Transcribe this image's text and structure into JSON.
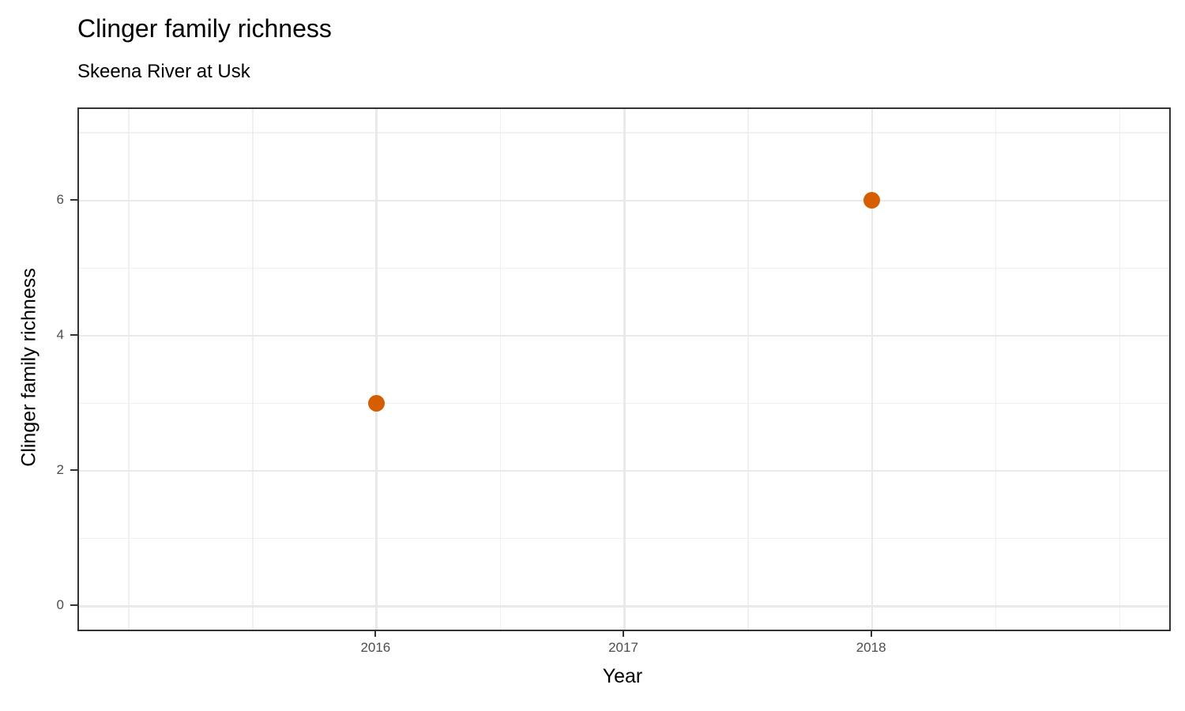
{
  "chart_data": {
    "type": "scatter",
    "title": "Clinger family richness",
    "subtitle": "Skeena River at Usk",
    "xlabel": "Year",
    "ylabel": "Clinger family richness",
    "points": [
      {
        "x": 2016,
        "y": 3
      },
      {
        "x": 2018,
        "y": 6
      }
    ],
    "x_ticks": [
      {
        "value": 2016,
        "label": "2016"
      },
      {
        "value": 2017,
        "label": "2017"
      },
      {
        "value": 2018,
        "label": "2018"
      }
    ],
    "y_ticks": [
      {
        "value": 0,
        "label": "0"
      },
      {
        "value": 2,
        "label": "2"
      },
      {
        "value": 4,
        "label": "4"
      },
      {
        "value": 6,
        "label": "6"
      }
    ],
    "x_minor_breaks": [
      2015,
      2015.5,
      2016.5,
      2017.5,
      2018.5,
      2019
    ],
    "y_minor_breaks": [
      1,
      3,
      5,
      7
    ],
    "xlim": [
      2014.8,
      2019.2
    ],
    "ylim": [
      -0.35,
      7.35
    ],
    "grid": true,
    "legend": "none",
    "colors": {
      "point": "#D55E00",
      "grid_major": "#e9e9e9",
      "grid_minor": "#f0f0f0",
      "panel_border": "#333333",
      "tick_label": "#4d4d4d",
      "text": "#000000",
      "background": "#ffffff"
    }
  }
}
